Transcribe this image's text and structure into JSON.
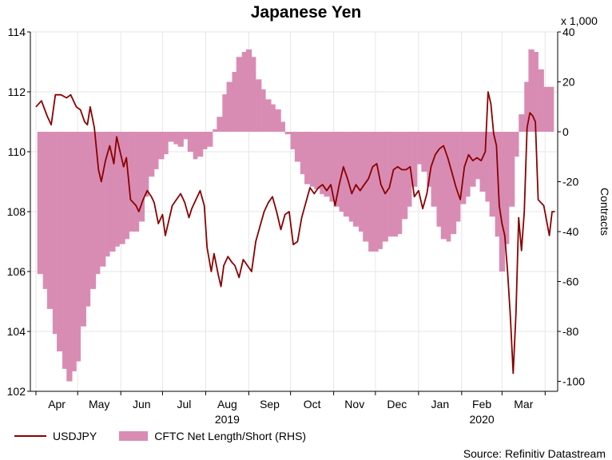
{
  "chart_data": {
    "type": "line",
    "title": "Japanese Yen",
    "y_left": {
      "ticks": [
        102,
        104,
        106,
        108,
        110,
        112,
        114
      ],
      "range": [
        102,
        114
      ]
    },
    "y_right": {
      "label": "Contracts",
      "unit": "x 1,000",
      "ticks": [
        40,
        20,
        0,
        -20,
        -40,
        -60,
        -80,
        -100
      ],
      "range": [
        -104,
        40
      ]
    },
    "x": {
      "months": [
        "Apr",
        "May",
        "Jun",
        "Jul",
        "Aug",
        "Sep",
        "Oct",
        "Nov",
        "Dec",
        "Jan",
        "Feb",
        "Mar"
      ],
      "years": [
        "2019",
        "2020"
      ]
    },
    "series": [
      {
        "name": "USDJPY",
        "color": "#8b0000",
        "axis": "left",
        "points": [
          [
            "2019-04-01",
            111.5
          ],
          [
            "2019-04-05",
            111.7
          ],
          [
            "2019-04-09",
            111.2
          ],
          [
            "2019-04-12",
            110.9
          ],
          [
            "2019-04-15",
            111.9
          ],
          [
            "2019-04-19",
            111.9
          ],
          [
            "2019-04-23",
            111.8
          ],
          [
            "2019-04-26",
            111.9
          ],
          [
            "2019-04-30",
            111.5
          ],
          [
            "2019-05-03",
            111.4
          ],
          [
            "2019-05-06",
            111.0
          ],
          [
            "2019-05-08",
            110.9
          ],
          [
            "2019-05-10",
            111.5
          ],
          [
            "2019-05-13",
            110.8
          ],
          [
            "2019-05-16",
            109.4
          ],
          [
            "2019-05-18",
            109.0
          ],
          [
            "2019-05-21",
            109.7
          ],
          [
            "2019-05-24",
            110.2
          ],
          [
            "2019-05-27",
            109.6
          ],
          [
            "2019-05-29",
            110.5
          ],
          [
            "2019-06-01",
            109.9
          ],
          [
            "2019-06-03",
            109.5
          ],
          [
            "2019-06-05",
            109.8
          ],
          [
            "2019-06-08",
            108.4
          ],
          [
            "2019-06-12",
            108.2
          ],
          [
            "2019-06-14",
            108.0
          ],
          [
            "2019-06-17",
            108.4
          ],
          [
            "2019-06-20",
            108.7
          ],
          [
            "2019-06-23",
            108.5
          ],
          [
            "2019-06-25",
            108.3
          ],
          [
            "2019-06-28",
            107.6
          ],
          [
            "2019-07-01",
            107.9
          ],
          [
            "2019-07-03",
            107.2
          ],
          [
            "2019-07-05",
            107.6
          ],
          [
            "2019-07-08",
            108.2
          ],
          [
            "2019-07-11",
            108.4
          ],
          [
            "2019-07-14",
            108.6
          ],
          [
            "2019-07-17",
            108.3
          ],
          [
            "2019-07-20",
            107.8
          ],
          [
            "2019-07-22",
            108.1
          ],
          [
            "2019-07-25",
            108.4
          ],
          [
            "2019-07-28",
            108.7
          ],
          [
            "2019-07-31",
            108.2
          ],
          [
            "2019-08-02",
            106.8
          ],
          [
            "2019-08-05",
            106.0
          ],
          [
            "2019-08-07",
            106.6
          ],
          [
            "2019-08-10",
            105.9
          ],
          [
            "2019-08-12",
            105.5
          ],
          [
            "2019-08-14",
            106.2
          ],
          [
            "2019-08-17",
            106.5
          ],
          [
            "2019-08-20",
            106.3
          ],
          [
            "2019-08-22",
            106.2
          ],
          [
            "2019-08-25",
            105.8
          ],
          [
            "2019-08-28",
            106.4
          ],
          [
            "2019-08-31",
            106.2
          ],
          [
            "2019-09-03",
            106.0
          ],
          [
            "2019-09-06",
            107.0
          ],
          [
            "2019-09-09",
            107.5
          ],
          [
            "2019-09-12",
            108.0
          ],
          [
            "2019-09-15",
            108.3
          ],
          [
            "2019-09-18",
            108.5
          ],
          [
            "2019-09-21",
            108.0
          ],
          [
            "2019-09-24",
            107.4
          ],
          [
            "2019-09-27",
            107.9
          ],
          [
            "2019-09-30",
            108.0
          ],
          [
            "2019-10-03",
            106.9
          ],
          [
            "2019-10-06",
            107.0
          ],
          [
            "2019-10-09",
            107.8
          ],
          [
            "2019-10-12",
            108.3
          ],
          [
            "2019-10-15",
            108.8
          ],
          [
            "2019-10-18",
            108.6
          ],
          [
            "2019-10-21",
            108.8
          ],
          [
            "2019-10-24",
            108.9
          ],
          [
            "2019-10-27",
            108.7
          ],
          [
            "2019-10-30",
            108.9
          ],
          [
            "2019-11-02",
            108.2
          ],
          [
            "2019-11-05",
            108.9
          ],
          [
            "2019-11-08",
            109.5
          ],
          [
            "2019-11-11",
            109.1
          ],
          [
            "2019-11-14",
            108.6
          ],
          [
            "2019-11-17",
            108.9
          ],
          [
            "2019-11-20",
            108.7
          ],
          [
            "2019-11-23",
            108.9
          ],
          [
            "2019-11-26",
            109.1
          ],
          [
            "2019-11-29",
            109.5
          ],
          [
            "2019-12-02",
            109.6
          ],
          [
            "2019-12-05",
            108.9
          ],
          [
            "2019-12-08",
            108.6
          ],
          [
            "2019-12-11",
            108.8
          ],
          [
            "2019-12-14",
            109.4
          ],
          [
            "2019-12-17",
            109.5
          ],
          [
            "2019-12-20",
            109.4
          ],
          [
            "2019-12-23",
            109.4
          ],
          [
            "2019-12-26",
            109.5
          ],
          [
            "2019-12-29",
            108.5
          ],
          [
            "2020-01-01",
            108.7
          ],
          [
            "2020-01-04",
            108.1
          ],
          [
            "2020-01-07",
            108.6
          ],
          [
            "2020-01-10",
            109.5
          ],
          [
            "2020-01-13",
            109.9
          ],
          [
            "2020-01-16",
            110.1
          ],
          [
            "2020-01-19",
            110.2
          ],
          [
            "2020-01-22",
            109.8
          ],
          [
            "2020-01-25",
            109.3
          ],
          [
            "2020-01-28",
            108.8
          ],
          [
            "2020-01-31",
            108.4
          ],
          [
            "2020-02-03",
            109.5
          ],
          [
            "2020-02-06",
            109.9
          ],
          [
            "2020-02-09",
            109.7
          ],
          [
            "2020-02-12",
            109.8
          ],
          [
            "2020-02-15",
            109.7
          ],
          [
            "2020-02-18",
            110.0
          ],
          [
            "2020-02-20",
            112.0
          ],
          [
            "2020-02-22",
            111.6
          ],
          [
            "2020-02-24",
            110.6
          ],
          [
            "2020-02-26",
            110.2
          ],
          [
            "2020-02-28",
            108.2
          ],
          [
            "2020-03-01",
            107.6
          ],
          [
            "2020-03-03",
            107.2
          ],
          [
            "2020-03-05",
            106.0
          ],
          [
            "2020-03-07",
            104.5
          ],
          [
            "2020-03-09",
            102.6
          ],
          [
            "2020-03-11",
            104.6
          ],
          [
            "2020-03-13",
            107.8
          ],
          [
            "2020-03-15",
            106.7
          ],
          [
            "2020-03-17",
            108.0
          ],
          [
            "2020-03-19",
            110.8
          ],
          [
            "2020-03-21",
            111.3
          ],
          [
            "2020-03-23",
            111.2
          ],
          [
            "2020-03-25",
            111.0
          ],
          [
            "2020-03-27",
            108.4
          ],
          [
            "2020-03-29",
            108.3
          ],
          [
            "2020-03-31",
            108.2
          ],
          [
            "2020-04-02",
            107.7
          ],
          [
            "2020-04-04",
            107.2
          ],
          [
            "2020-04-06",
            108.0
          ],
          [
            "2020-04-08",
            108.0
          ]
        ]
      },
      {
        "name": "CFTC Net Length/Short (RHS)",
        "color": "#d98cb3",
        "axis": "right",
        "points": [
          [
            "2019-04-02",
            -57
          ],
          [
            "2019-04-06",
            -63
          ],
          [
            "2019-04-09",
            -71
          ],
          [
            "2019-04-13",
            -81
          ],
          [
            "2019-04-16",
            -88
          ],
          [
            "2019-04-20",
            -95
          ],
          [
            "2019-04-23",
            -100
          ],
          [
            "2019-04-27",
            -96
          ],
          [
            "2019-04-30",
            -92
          ],
          [
            "2019-05-03",
            -78
          ],
          [
            "2019-05-07",
            -70
          ],
          [
            "2019-05-10",
            -63
          ],
          [
            "2019-05-14",
            -57
          ],
          [
            "2019-05-17",
            -54
          ],
          [
            "2019-05-21",
            -50
          ],
          [
            "2019-05-24",
            -48
          ],
          [
            "2019-05-28",
            -46
          ],
          [
            "2019-05-31",
            -45
          ],
          [
            "2019-06-04",
            -43
          ],
          [
            "2019-06-07",
            -40
          ],
          [
            "2019-06-11",
            -40
          ],
          [
            "2019-06-14",
            -36
          ],
          [
            "2019-06-18",
            -26
          ],
          [
            "2019-06-21",
            -18
          ],
          [
            "2019-06-25",
            -15
          ],
          [
            "2019-06-28",
            -11
          ],
          [
            "2019-07-02",
            -9
          ],
          [
            "2019-07-05",
            -4
          ],
          [
            "2019-07-09",
            -5
          ],
          [
            "2019-07-12",
            -6
          ],
          [
            "2019-07-16",
            -3
          ],
          [
            "2019-07-19",
            -8
          ],
          [
            "2019-07-23",
            -11
          ],
          [
            "2019-07-26",
            -10
          ],
          [
            "2019-07-30",
            -7
          ],
          [
            "2019-08-02",
            -6
          ],
          [
            "2019-08-06",
            1
          ],
          [
            "2019-08-09",
            6
          ],
          [
            "2019-08-13",
            15
          ],
          [
            "2019-08-16",
            20
          ],
          [
            "2019-08-20",
            24
          ],
          [
            "2019-08-23",
            30
          ],
          [
            "2019-08-27",
            32
          ],
          [
            "2019-08-30",
            33
          ],
          [
            "2019-09-03",
            30
          ],
          [
            "2019-09-06",
            21
          ],
          [
            "2019-09-10",
            17
          ],
          [
            "2019-09-13",
            13
          ],
          [
            "2019-09-17",
            11
          ],
          [
            "2019-09-20",
            9
          ],
          [
            "2019-09-24",
            4
          ],
          [
            "2019-09-27",
            -1
          ],
          [
            "2019-10-01",
            -7
          ],
          [
            "2019-10-04",
            -12
          ],
          [
            "2019-10-08",
            -17
          ],
          [
            "2019-10-11",
            -21
          ],
          [
            "2019-10-15",
            -22
          ],
          [
            "2019-10-18",
            -23
          ],
          [
            "2019-10-22",
            -25
          ],
          [
            "2019-10-25",
            -26
          ],
          [
            "2019-10-29",
            -28
          ],
          [
            "2019-11-01",
            -30
          ],
          [
            "2019-11-05",
            -32
          ],
          [
            "2019-11-08",
            -34
          ],
          [
            "2019-11-12",
            -36
          ],
          [
            "2019-11-15",
            -38
          ],
          [
            "2019-11-19",
            -40
          ],
          [
            "2019-11-22",
            -44
          ],
          [
            "2019-11-26",
            -48
          ],
          [
            "2019-11-29",
            -48
          ],
          [
            "2019-12-03",
            -47
          ],
          [
            "2019-12-06",
            -44
          ],
          [
            "2019-12-10",
            -42
          ],
          [
            "2019-12-13",
            -42
          ],
          [
            "2019-12-17",
            -41
          ],
          [
            "2019-12-20",
            -35
          ],
          [
            "2019-12-24",
            -30
          ],
          [
            "2019-12-27",
            -22
          ],
          [
            "2019-12-31",
            -13
          ],
          [
            "2020-01-03",
            -16
          ],
          [
            "2020-01-07",
            -22
          ],
          [
            "2020-01-10",
            -30
          ],
          [
            "2020-01-14",
            -38
          ],
          [
            "2020-01-17",
            -43
          ],
          [
            "2020-01-21",
            -44
          ],
          [
            "2020-01-24",
            -41
          ],
          [
            "2020-01-28",
            -36
          ],
          [
            "2020-01-31",
            -29
          ],
          [
            "2020-02-04",
            -26
          ],
          [
            "2020-02-07",
            -22
          ],
          [
            "2020-02-11",
            -19
          ],
          [
            "2020-02-14",
            -24
          ],
          [
            "2020-02-18",
            -28
          ],
          [
            "2020-02-21",
            -34
          ],
          [
            "2020-02-25",
            -42
          ],
          [
            "2020-02-28",
            -56
          ],
          [
            "2020-03-03",
            -45
          ],
          [
            "2020-03-06",
            -30
          ],
          [
            "2020-03-10",
            -10
          ],
          [
            "2020-03-13",
            7
          ],
          [
            "2020-03-17",
            20
          ],
          [
            "2020-03-20",
            33
          ],
          [
            "2020-03-24",
            32
          ],
          [
            "2020-03-27",
            25
          ],
          [
            "2020-03-31",
            18
          ],
          [
            "2020-04-03",
            18
          ],
          [
            "2020-04-07",
            18
          ]
        ]
      }
    ]
  },
  "legend": {
    "usdjpy": "USDJPY",
    "cftc": "CFTC Net Length/Short (RHS)"
  },
  "labels": {
    "title": "Japanese Yen",
    "right_unit": "x 1,000",
    "right_axis": "Contracts",
    "source": "Source: Refinitiv Datastream"
  }
}
